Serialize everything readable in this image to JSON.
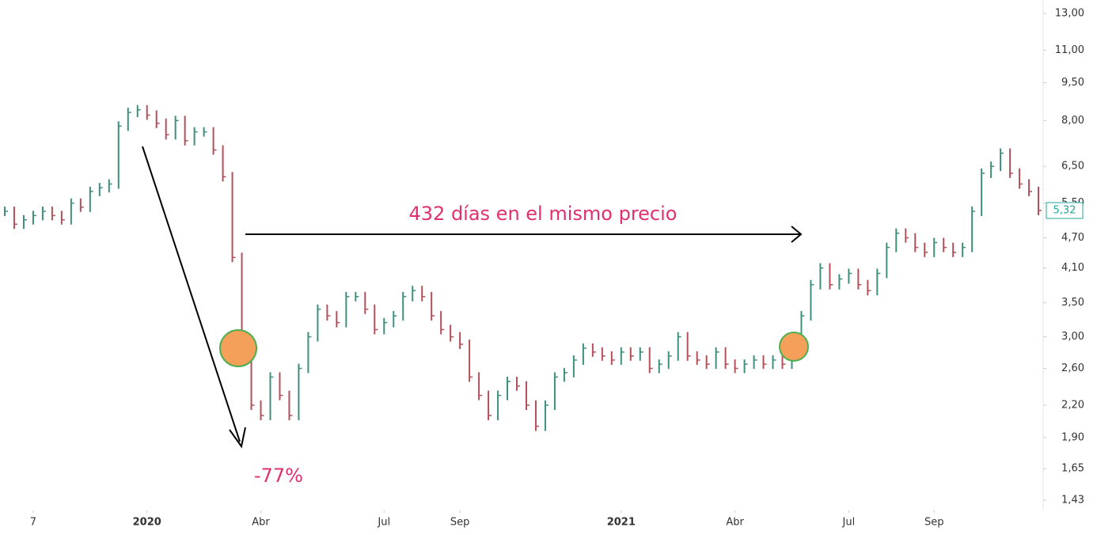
{
  "chart_data": {
    "type": "price-bars",
    "annotations": [
      "432 días en el mismo precio",
      "-77%"
    ],
    "values": [
      5.3,
      5.0,
      5.1,
      5.2,
      5.3,
      5.2,
      5.1,
      5.5,
      5.4,
      5.8,
      5.9,
      6.0,
      7.8,
      8.3,
      8.4,
      8.2,
      7.9,
      7.5,
      8.0,
      7.3,
      7.6,
      7.6,
      7.0,
      6.2,
      4.3,
      2.8,
      2.2,
      2.1,
      2.5,
      2.3,
      2.1,
      2.6,
      3.0,
      3.4,
      3.3,
      3.2,
      3.6,
      3.6,
      3.4,
      3.1,
      3.2,
      3.3,
      3.6,
      3.7,
      3.6,
      3.3,
      3.1,
      3.0,
      2.9,
      2.5,
      2.3,
      2.1,
      2.3,
      2.45,
      2.4,
      2.2,
      2.0,
      2.2,
      2.5,
      2.55,
      2.7,
      2.85,
      2.8,
      2.75,
      2.7,
      2.8,
      2.75,
      2.8,
      2.6,
      2.65,
      2.75,
      3.0,
      2.75,
      2.7,
      2.65,
      2.8,
      2.65,
      2.6,
      2.65,
      2.7,
      2.65,
      2.7,
      2.65,
      2.8,
      3.3,
      3.8,
      4.1,
      3.8,
      3.9,
      4.0,
      3.8,
      3.7,
      4.0,
      4.5,
      4.8,
      4.7,
      4.5,
      4.4,
      4.6,
      4.5,
      4.4,
      4.5,
      5.3,
      6.3,
      6.5,
      6.9,
      6.3,
      6.0,
      5.8,
      5.32
    ],
    "up_color": "#3f8f7f",
    "down_color": "#b5505a",
    "last_price": {
      "value": 5.32,
      "label": "5,32"
    },
    "log_scale": true,
    "xlim": [
      -0.5,
      109.5
    ],
    "xticks": [
      {
        "value": 3,
        "label": "7"
      },
      {
        "value": 15,
        "label": "2020"
      },
      {
        "value": 27,
        "label": "Abr"
      },
      {
        "value": 40,
        "label": "Jul"
      },
      {
        "value": 48,
        "label": "Sep"
      },
      {
        "value": 65,
        "label": "2021"
      },
      {
        "value": 77,
        "label": "Abr"
      },
      {
        "value": 89,
        "label": "Jul"
      },
      {
        "value": 98,
        "label": "Sep"
      }
    ],
    "ylim": [
      1.365,
      13.82
    ],
    "yticks": [
      {
        "value": 1.43,
        "label": "1,43"
      },
      {
        "value": 1.65,
        "label": "1,65"
      },
      {
        "value": 1.9,
        "label": "1,90"
      },
      {
        "value": 2.2,
        "label": "2,20"
      },
      {
        "value": 2.6,
        "label": "2,60"
      },
      {
        "value": 3,
        "label": "3,00"
      },
      {
        "value": 3.5,
        "label": "3,50"
      },
      {
        "value": 4.1,
        "label": "4,10"
      },
      {
        "value": 4.7,
        "label": "4,70"
      },
      {
        "value": 5.5,
        "label": "5,50"
      },
      {
        "value": 6.5,
        "label": "6,50"
      },
      {
        "value": 8,
        "label": "8,00"
      },
      {
        "value": 9.5,
        "label": "9,50"
      },
      {
        "value": 11,
        "label": "11,00"
      },
      {
        "value": 13,
        "label": "13,00"
      }
    ]
  }
}
